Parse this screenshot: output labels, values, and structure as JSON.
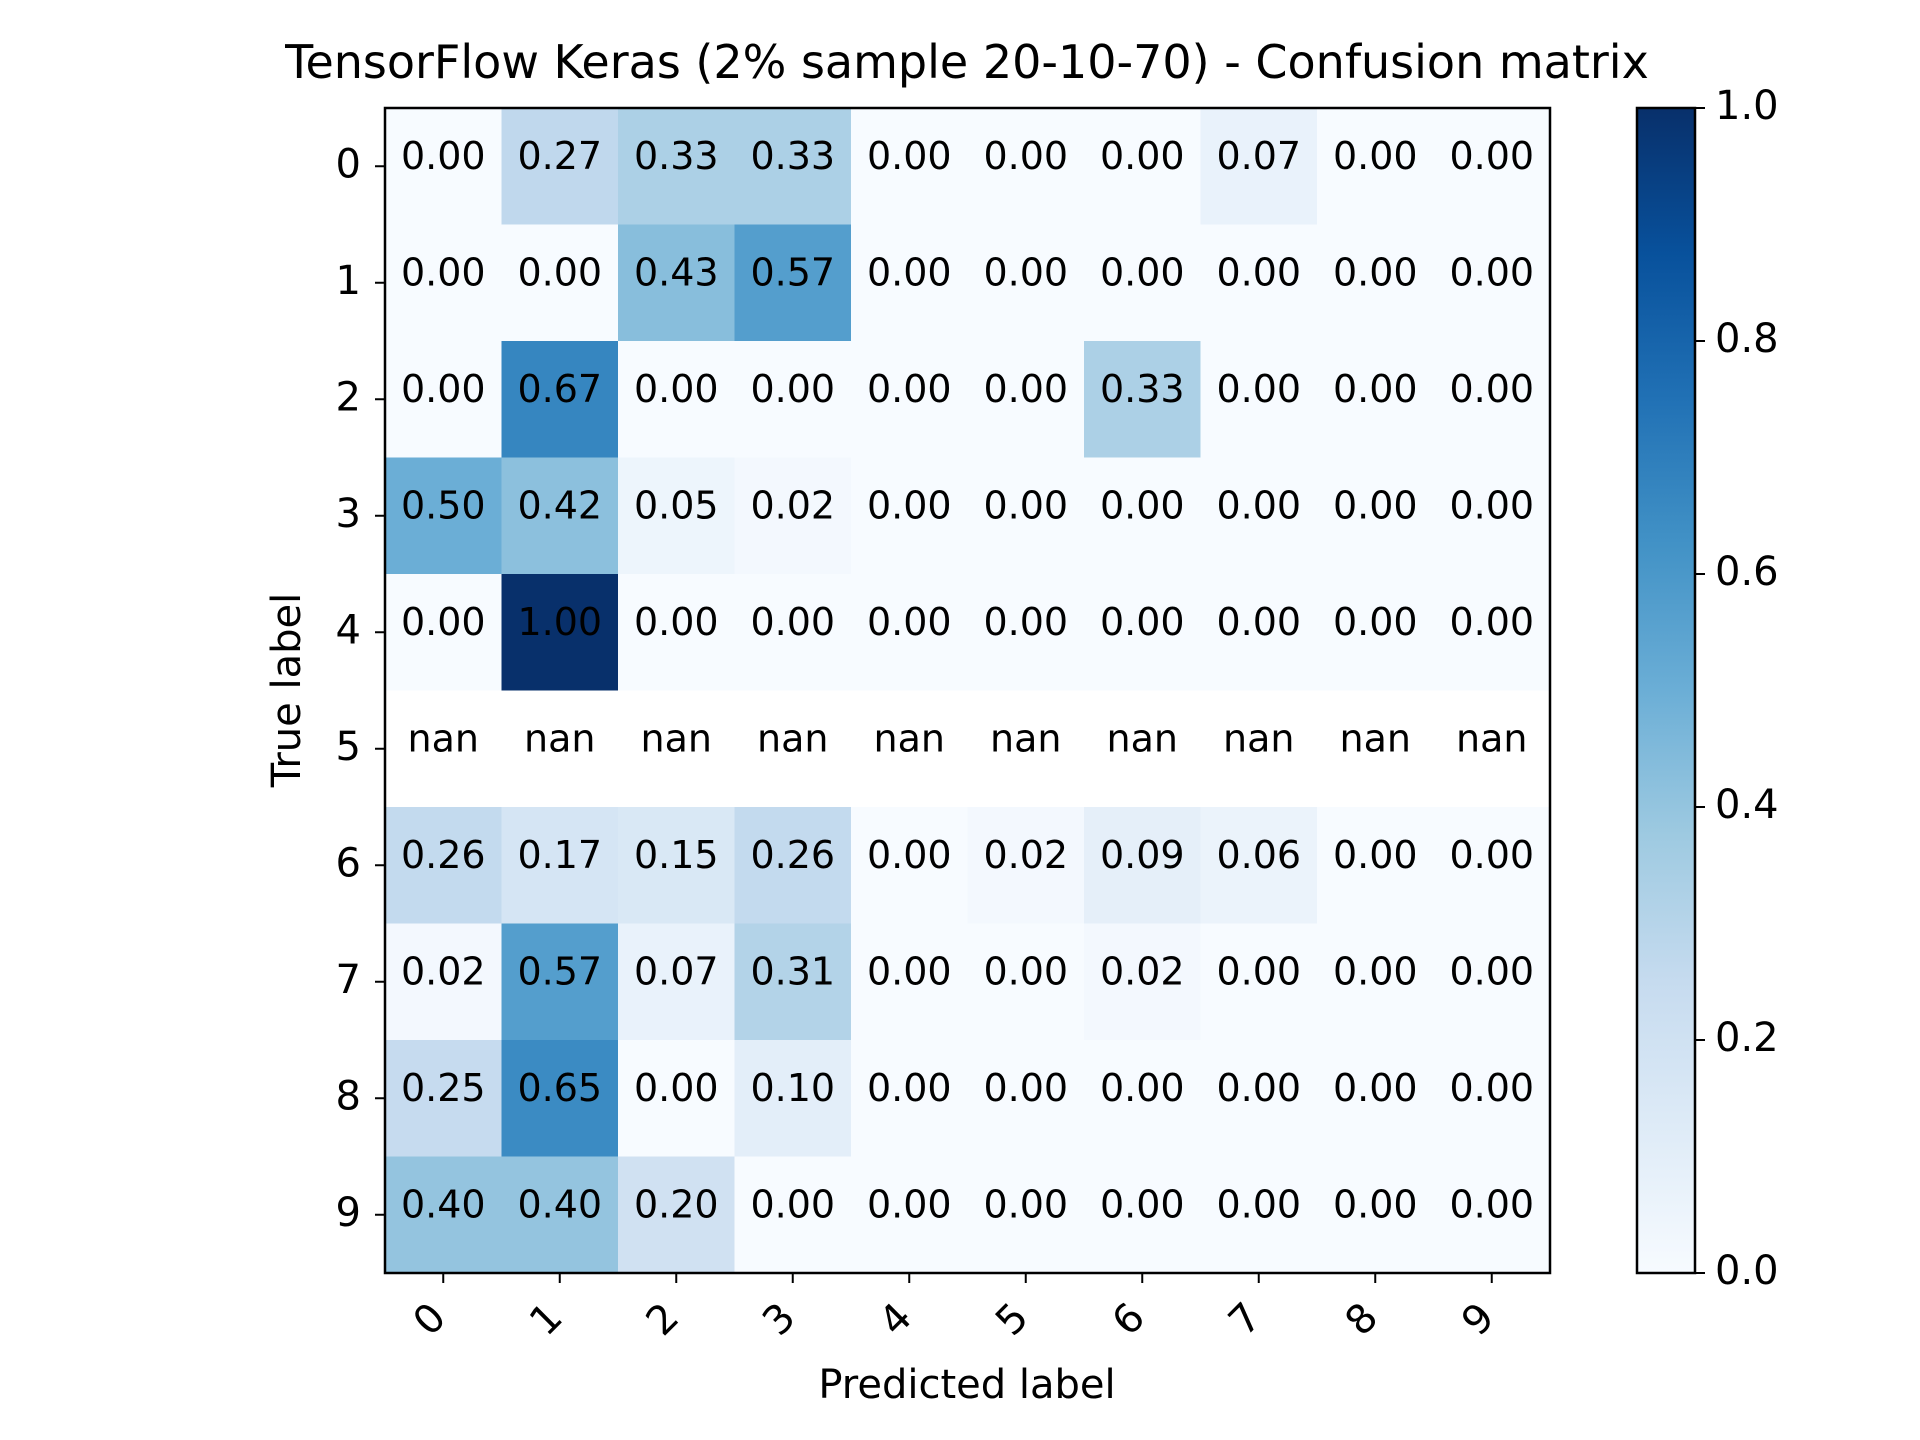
{
  "chart_data": {
    "type": "heatmap",
    "title": "TensorFlow Keras (2% sample 20-10-70) - Confusion matrix",
    "xlabel": "Predicted label",
    "ylabel": "True label",
    "x_tick_labels": [
      "0",
      "1",
      "2",
      "3",
      "4",
      "5",
      "6",
      "7",
      "8",
      "9"
    ],
    "y_tick_labels": [
      "0",
      "1",
      "2",
      "3",
      "4",
      "5",
      "6",
      "7",
      "8",
      "9"
    ],
    "colormap": "Blues",
    "clim": [
      0.0,
      1.0
    ],
    "colorbar_ticks": [
      "0.0",
      "0.2",
      "0.4",
      "0.6",
      "0.8",
      "1.0"
    ],
    "cells": [
      [
        "0.00",
        "0.27",
        "0.33",
        "0.33",
        "0.00",
        "0.00",
        "0.00",
        "0.07",
        "0.00",
        "0.00"
      ],
      [
        "0.00",
        "0.00",
        "0.43",
        "0.57",
        "0.00",
        "0.00",
        "0.00",
        "0.00",
        "0.00",
        "0.00"
      ],
      [
        "0.00",
        "0.67",
        "0.00",
        "0.00",
        "0.00",
        "0.00",
        "0.33",
        "0.00",
        "0.00",
        "0.00"
      ],
      [
        "0.50",
        "0.42",
        "0.05",
        "0.02",
        "0.00",
        "0.00",
        "0.00",
        "0.00",
        "0.00",
        "0.00"
      ],
      [
        "0.00",
        "1.00",
        "0.00",
        "0.00",
        "0.00",
        "0.00",
        "0.00",
        "0.00",
        "0.00",
        "0.00"
      ],
      [
        "nan",
        "nan",
        "nan",
        "nan",
        "nan",
        "nan",
        "nan",
        "nan",
        "nan",
        "nan"
      ],
      [
        "0.26",
        "0.17",
        "0.15",
        "0.26",
        "0.00",
        "0.02",
        "0.09",
        "0.06",
        "0.00",
        "0.00"
      ],
      [
        "0.02",
        "0.57",
        "0.07",
        "0.31",
        "0.00",
        "0.00",
        "0.02",
        "0.00",
        "0.00",
        "0.00"
      ],
      [
        "0.25",
        "0.65",
        "0.00",
        "0.10",
        "0.00",
        "0.00",
        "0.00",
        "0.00",
        "0.00",
        "0.00"
      ],
      [
        "0.40",
        "0.40",
        "0.20",
        "0.00",
        "0.00",
        "0.00",
        "0.00",
        "0.00",
        "0.00",
        "0.00"
      ]
    ]
  }
}
